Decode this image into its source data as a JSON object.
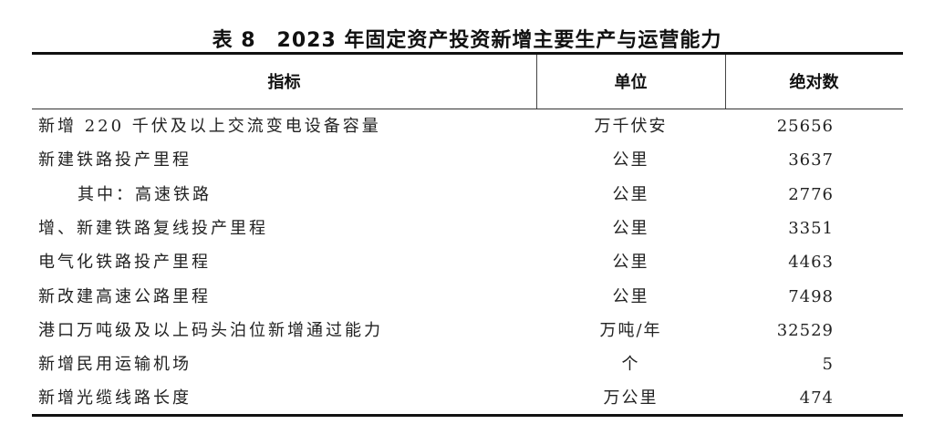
{
  "title": "表 8　2023 年固定资产投资新增主要生产与运营能力",
  "headers": {
    "indicator": "指标",
    "unit": "单位",
    "value": "绝对数"
  },
  "rows": [
    {
      "indicator": "新增 220 千伏及以上交流变电设备容量",
      "unit": "万千伏安",
      "value": "25656",
      "sub": false
    },
    {
      "indicator": "新建铁路投产里程",
      "unit": "公里",
      "value": "3637",
      "sub": false
    },
    {
      "indicator": "其中：高速铁路",
      "unit": "公里",
      "value": "2776",
      "sub": true
    },
    {
      "indicator": "增、新建铁路复线投产里程",
      "unit": "公里",
      "value": "3351",
      "sub": false
    },
    {
      "indicator": "电气化铁路投产里程",
      "unit": "公里",
      "value": "4463",
      "sub": false
    },
    {
      "indicator": "新改建高速公路里程",
      "unit": "公里",
      "value": "7498",
      "sub": false
    },
    {
      "indicator": "港口万吨级及以上码头泊位新增通过能力",
      "unit": "万吨/年",
      "value": "32529",
      "sub": false
    },
    {
      "indicator": "新增民用运输机场",
      "unit": "个",
      "value": "5",
      "sub": false
    },
    {
      "indicator": "新增光缆线路长度",
      "unit": "万公里",
      "value": "474",
      "sub": false
    }
  ]
}
